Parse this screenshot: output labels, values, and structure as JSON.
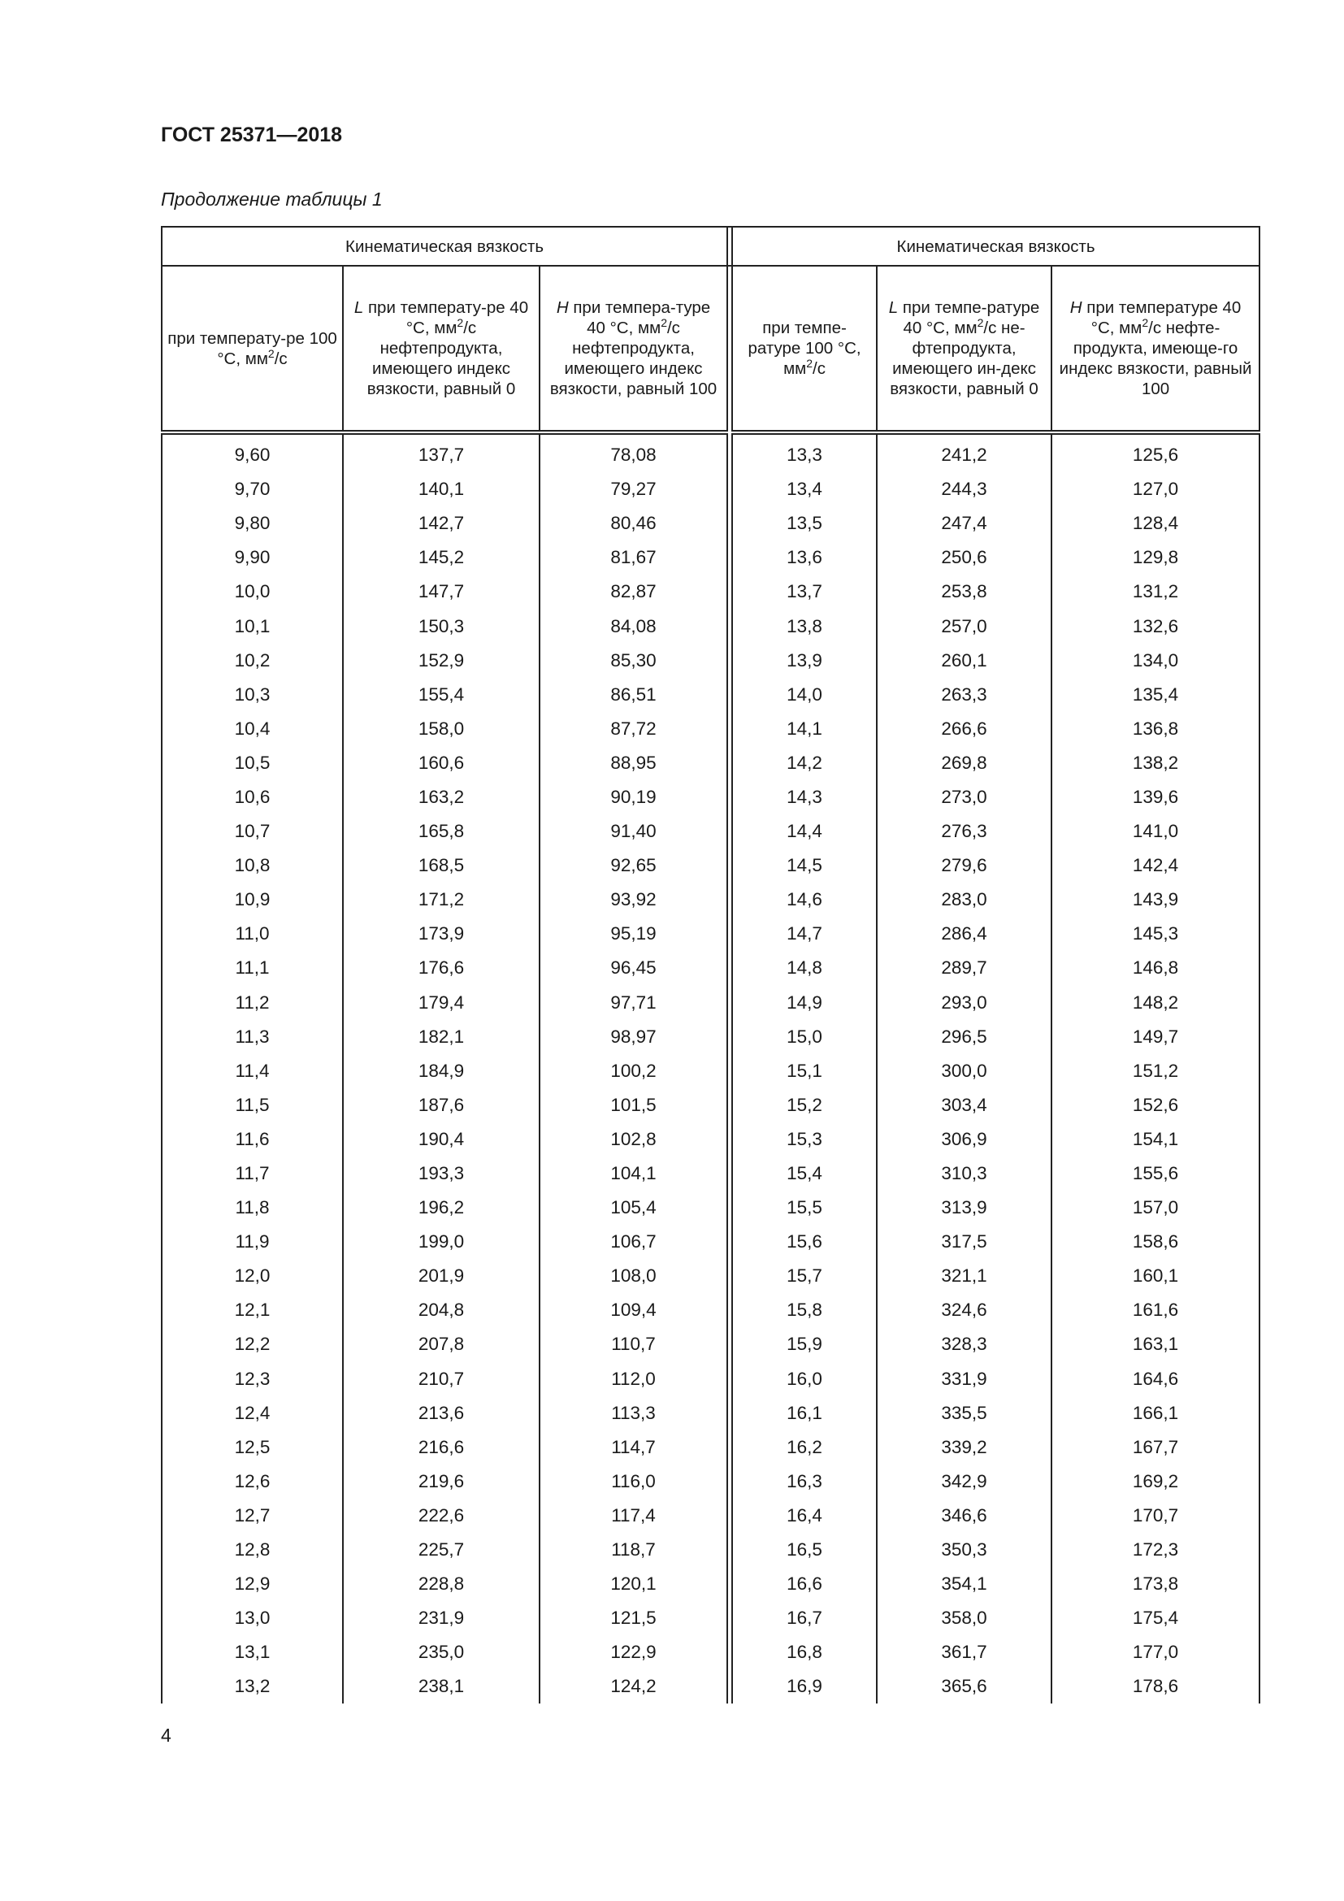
{
  "header": {
    "title": "ГОСТ 25371—2018"
  },
  "caption": "Продолжение таблицы 1",
  "table": {
    "group_header_left": "Кинематическая вязкость",
    "group_header_right": "Кинематическая вязкость",
    "columns": [
      {
        "pre": "",
        "text": "при температу-ре 100 °С, мм",
        "sup": "2",
        "post": "/с"
      },
      {
        "pre": "L",
        "text": " при температу-ре 40 °С, мм",
        "sup": "2",
        "post": "/с нефтепродукта, имеющего индекс вязкости, равный 0"
      },
      {
        "pre": "H",
        "text": " при темпера-туре 40 °С, мм",
        "sup": "2",
        "post": "/с нефтепродукта, имеющего индекс вязкости, равный 100"
      },
      {
        "pre": "",
        "text": "при темпе-ратуре 100 °С, мм",
        "sup": "2",
        "post": "/с"
      },
      {
        "pre": "L",
        "text": " при темпе-ратуре 40 °С, мм",
        "sup": "2",
        "post": "/с не-фтепродукта, имеющего ин-декс вязкости, равный 0"
      },
      {
        "pre": "H",
        "text": " при температуре 40 °С, мм",
        "sup": "2",
        "post": "/с нефте-продукта, имеюще-го индекс вязкости, равный 100"
      }
    ],
    "rows": [
      [
        "9,60",
        "137,7",
        "78,08",
        "13,3",
        "241,2",
        "125,6"
      ],
      [
        "9,70",
        "140,1",
        "79,27",
        "13,4",
        "244,3",
        "127,0"
      ],
      [
        "9,80",
        "142,7",
        "80,46",
        "13,5",
        "247,4",
        "128,4"
      ],
      [
        "9,90",
        "145,2",
        "81,67",
        "13,6",
        "250,6",
        "129,8"
      ],
      [
        "10,0",
        "147,7",
        "82,87",
        "13,7",
        "253,8",
        "131,2"
      ],
      [
        "10,1",
        "150,3",
        "84,08",
        "13,8",
        "257,0",
        "132,6"
      ],
      [
        "10,2",
        "152,9",
        "85,30",
        "13,9",
        "260,1",
        "134,0"
      ],
      [
        "10,3",
        "155,4",
        "86,51",
        "14,0",
        "263,3",
        "135,4"
      ],
      [
        "10,4",
        "158,0",
        "87,72",
        "14,1",
        "266,6",
        "136,8"
      ],
      [
        "10,5",
        "160,6",
        "88,95",
        "14,2",
        "269,8",
        "138,2"
      ],
      [
        "10,6",
        "163,2",
        "90,19",
        "14,3",
        "273,0",
        "139,6"
      ],
      [
        "10,7",
        "165,8",
        "91,40",
        "14,4",
        "276,3",
        "141,0"
      ],
      [
        "10,8",
        "168,5",
        "92,65",
        "14,5",
        "279,6",
        "142,4"
      ],
      [
        "10,9",
        "171,2",
        "93,92",
        "14,6",
        "283,0",
        "143,9"
      ],
      [
        "11,0",
        "173,9",
        "95,19",
        "14,7",
        "286,4",
        "145,3"
      ],
      [
        "11,1",
        "176,6",
        "96,45",
        "14,8",
        "289,7",
        "146,8"
      ],
      [
        "11,2",
        "179,4",
        "97,71",
        "14,9",
        "293,0",
        "148,2"
      ],
      [
        "11,3",
        "182,1",
        "98,97",
        "15,0",
        "296,5",
        "149,7"
      ],
      [
        "11,4",
        "184,9",
        "100,2",
        "15,1",
        "300,0",
        "151,2"
      ],
      [
        "11,5",
        "187,6",
        "101,5",
        "15,2",
        "303,4",
        "152,6"
      ],
      [
        "11,6",
        "190,4",
        "102,8",
        "15,3",
        "306,9",
        "154,1"
      ],
      [
        "11,7",
        "193,3",
        "104,1",
        "15,4",
        "310,3",
        "155,6"
      ],
      [
        "11,8",
        "196,2",
        "105,4",
        "15,5",
        "313,9",
        "157,0"
      ],
      [
        "11,9",
        "199,0",
        "106,7",
        "15,6",
        "317,5",
        "158,6"
      ],
      [
        "12,0",
        "201,9",
        "108,0",
        "15,7",
        "321,1",
        "160,1"
      ],
      [
        "12,1",
        "204,8",
        "109,4",
        "15,8",
        "324,6",
        "161,6"
      ],
      [
        "12,2",
        "207,8",
        "110,7",
        "15,9",
        "328,3",
        "163,1"
      ],
      [
        "12,3",
        "210,7",
        "112,0",
        "16,0",
        "331,9",
        "164,6"
      ],
      [
        "12,4",
        "213,6",
        "113,3",
        "16,1",
        "335,5",
        "166,1"
      ],
      [
        "12,5",
        "216,6",
        "114,7",
        "16,2",
        "339,2",
        "167,7"
      ],
      [
        "12,6",
        "219,6",
        "116,0",
        "16,3",
        "342,9",
        "169,2"
      ],
      [
        "12,7",
        "222,6",
        "117,4",
        "16,4",
        "346,6",
        "170,7"
      ],
      [
        "12,8",
        "225,7",
        "118,7",
        "16,5",
        "350,3",
        "172,3"
      ],
      [
        "12,9",
        "228,8",
        "120,1",
        "16,6",
        "354,1",
        "173,8"
      ],
      [
        "13,0",
        "231,9",
        "121,5",
        "16,7",
        "358,0",
        "175,4"
      ],
      [
        "13,1",
        "235,0",
        "122,9",
        "16,8",
        "361,7",
        "177,0"
      ],
      [
        "13,2",
        "238,1",
        "124,2",
        "16,9",
        "365,6",
        "178,6"
      ]
    ]
  },
  "footer": {
    "page_number": "4"
  }
}
